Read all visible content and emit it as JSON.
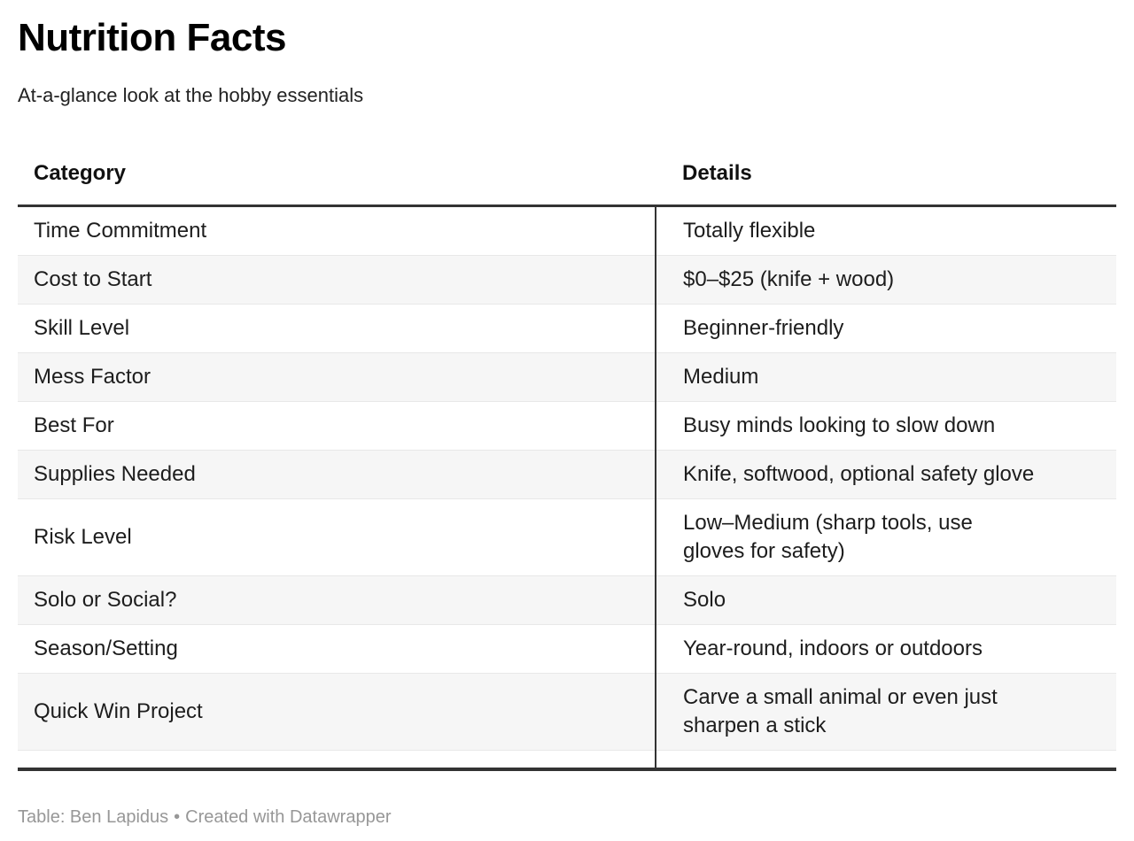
{
  "chart_data": {
    "type": "table",
    "title": "Nutrition Facts",
    "subtitle": "At-a-glance look at the hobby essentials",
    "columns": [
      "Category",
      "Details"
    ],
    "rows": [
      {
        "category": "Time Commitment",
        "details": "Totally flexible"
      },
      {
        "category": "Cost to Start",
        "details": "$0–$25 (knife + wood)"
      },
      {
        "category": "Skill Level",
        "details": "Beginner-friendly"
      },
      {
        "category": "Mess Factor",
        "details": "Medium"
      },
      {
        "category": "Best For",
        "details": "Busy minds looking to slow down"
      },
      {
        "category": "Supplies Needed",
        "details": "Knife, softwood, optional safety glove"
      },
      {
        "category": "Risk Level",
        "details": "Low–Medium (sharp tools, use\ngloves for safety)"
      },
      {
        "category": "Solo or Social?",
        "details": "Solo"
      },
      {
        "category": "Season/Setting",
        "details": "Year-round, indoors or outdoors"
      },
      {
        "category": "Quick Win Project",
        "details": "Carve a small animal or even just\nsharpen a stick"
      }
    ],
    "layout": {
      "striped_rows": true,
      "stripe_on": "even",
      "column_divider": true,
      "grid": "horizontal-only"
    }
  },
  "footer": {
    "credit": "Table: Ben Lapidus",
    "separator": "•",
    "attribution": "Created with Datawrapper"
  },
  "colors": {
    "header_border": "#333333",
    "bottom_border": "#333333",
    "column_divider": "#333333",
    "row_stripe": "#f6f6f6",
    "row_divider": "#e8e8e8",
    "footer_text": "#979797",
    "title_text": "#000000",
    "body_text": "#1d1d1d"
  }
}
